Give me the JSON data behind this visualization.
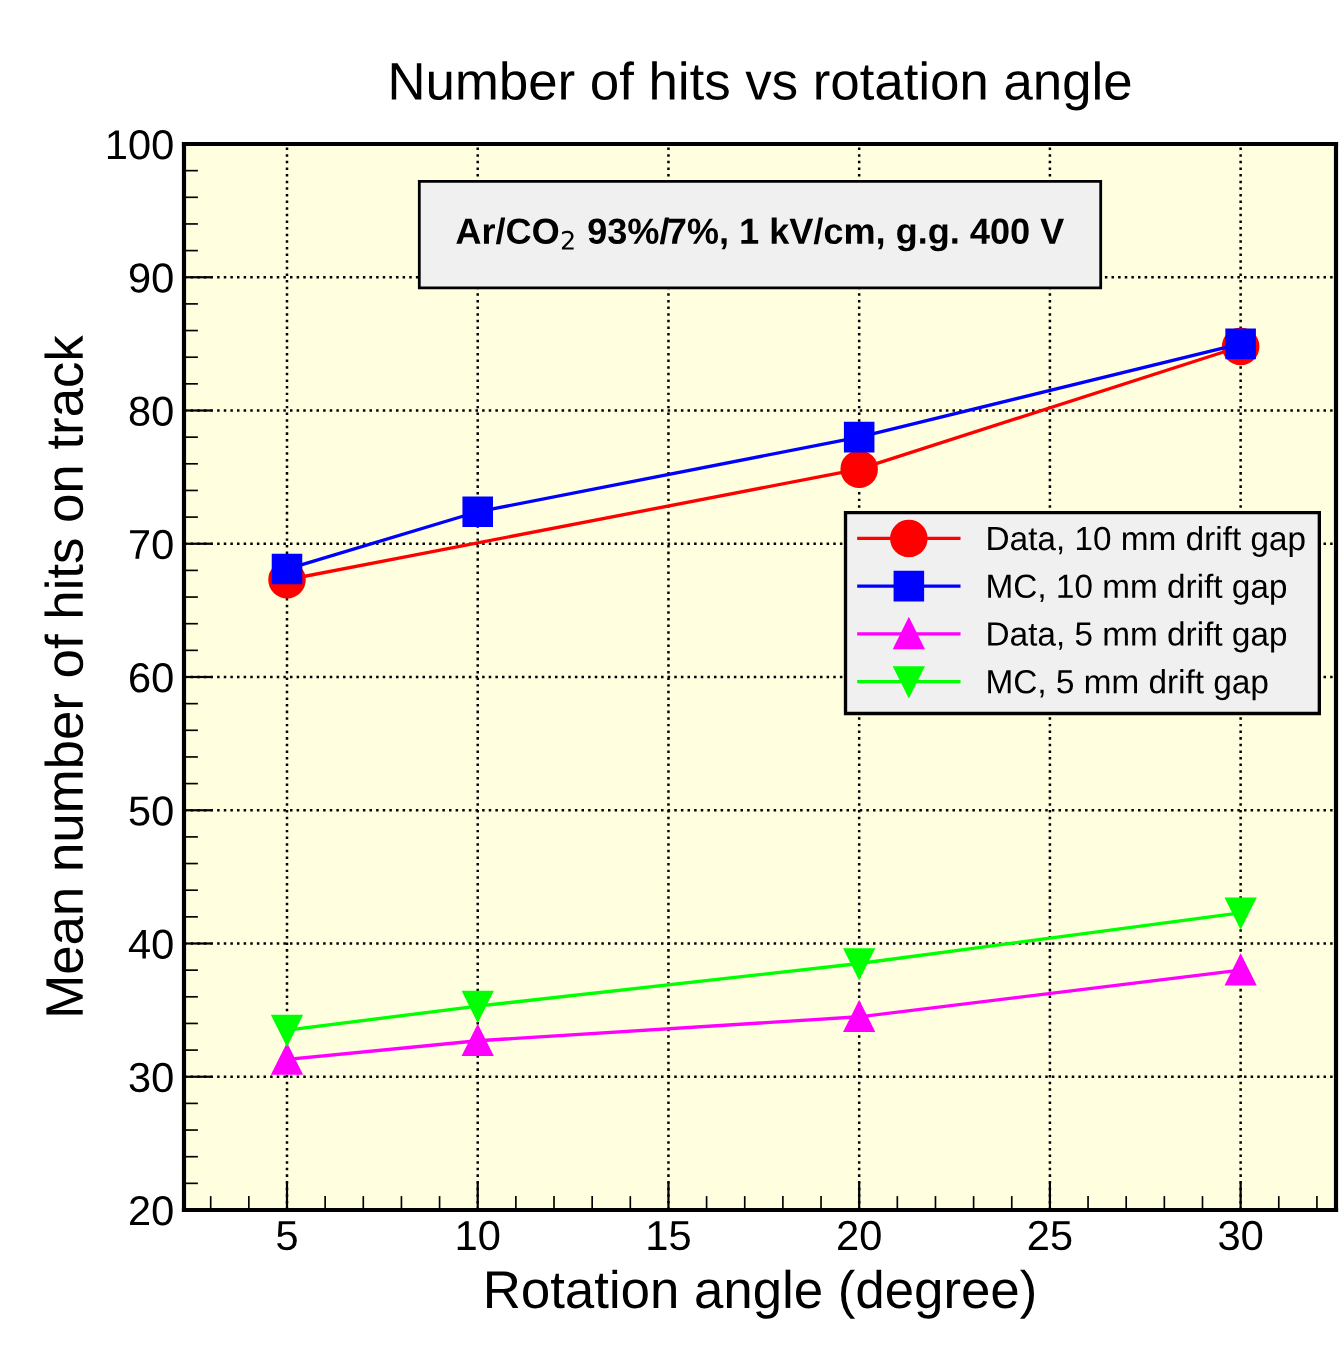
{
  "chart_data": {
    "type": "line",
    "title": "Number of hits vs rotation angle",
    "xlabel": "Rotation angle (degree)",
    "ylabel": "Mean number of hits on track",
    "annotations": [
      "Ar/CO$_{2}$ 93%/7%, 1 kV/cm, g.g. 400 V"
    ],
    "series": [
      {
        "name": "Data, 10 mm drift gap",
        "color": "#ff0000",
        "marker": "circle",
        "x": [
          5,
          20,
          30
        ],
        "values": [
          67.3,
          75.6,
          84.8
        ]
      },
      {
        "name": "MC, 10 mm drift gap",
        "color": "#0000ff",
        "marker": "square",
        "x": [
          5,
          10,
          20,
          30
        ],
        "values": [
          68.1,
          72.4,
          78.0,
          85.0
        ]
      },
      {
        "name": "Data, 5 mm drift gap",
        "color": "#ff00ff",
        "marker": "triangle",
        "x": [
          5,
          10,
          20,
          30
        ],
        "values": [
          31.3,
          32.7,
          34.5,
          38.0
        ]
      },
      {
        "name": "MC, 5 mm drift gap",
        "color": "#00ff00",
        "marker": "triangle_down",
        "x": [
          5,
          10,
          20,
          30
        ],
        "values": [
          33.5,
          35.3,
          38.5,
          42.3
        ]
      }
    ],
    "xlim": [
      2.3,
      32.5
    ],
    "xticks": [
      5,
      10,
      15,
      20,
      25,
      30
    ],
    "ylim": [
      20,
      100
    ],
    "yticks": [
      20,
      30,
      40,
      50,
      60,
      70,
      80,
      90,
      100
    ],
    "grid": true,
    "legend": "right",
    "line_style": "solid"
  }
}
